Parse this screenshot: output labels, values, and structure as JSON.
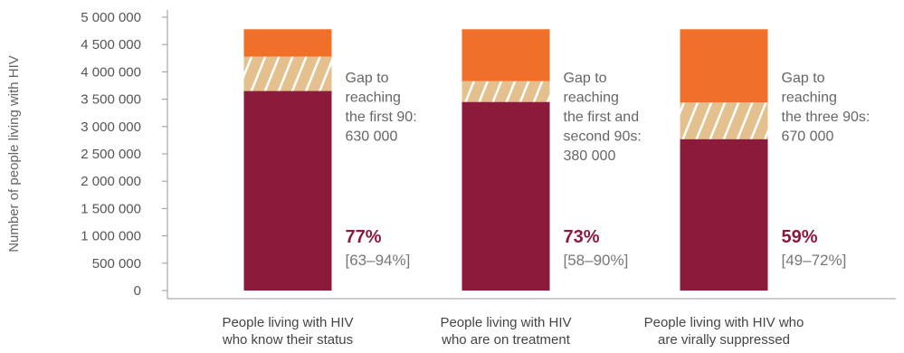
{
  "chart_data": {
    "type": "bar",
    "ylabel": "Number of people living with HIV",
    "ylim": [
      0,
      5000000
    ],
    "yticks": [
      0,
      500000,
      1000000,
      1500000,
      2000000,
      2500000,
      3000000,
      3500000,
      4000000,
      4500000,
      5000000
    ],
    "ytick_labels": [
      "0",
      "500 000",
      "1 000 000",
      "1 500 000",
      "2 000 000",
      "2 500 000",
      "3 000 000",
      "3 500 000",
      "4 000 000",
      "4 500 000",
      "5 000 000"
    ],
    "categories": [
      [
        "People living with HIV",
        "who know their status"
      ],
      [
        "People living with HIV",
        "who are on treatment"
      ],
      [
        "People living with HIV who",
        "are virally suppressed"
      ]
    ],
    "series": [
      {
        "values": [
          3650000,
          3450000,
          2770000
        ]
      },
      {
        "values": [
          630000,
          380000,
          670000
        ]
      },
      {
        "values": [
          500000,
          950000,
          1340000
        ]
      }
    ],
    "annotations": [
      {
        "gap_lines": [
          "Gap to",
          "reaching",
          "the first 90:",
          "630 000"
        ],
        "percent": "77%",
        "range": "[63–94%]"
      },
      {
        "gap_lines": [
          "Gap to",
          "reaching",
          "the first and",
          "second 90s:",
          "380 000"
        ],
        "percent": "73%",
        "range": "[58–90%]"
      },
      {
        "gap_lines": [
          "Gap to",
          "reaching",
          "the three 90s:",
          "670 000"
        ],
        "percent": "59%",
        "range": "[49–72%]"
      }
    ],
    "grid": false
  },
  "colors": {
    "achieved": "#8b1a3b",
    "gap_base": "#e3c08e",
    "gap_hatch": "#ffffff",
    "remaining": "#f0702a",
    "axis": "#9a9a9a",
    "percent_text": "#8b1a3b"
  }
}
